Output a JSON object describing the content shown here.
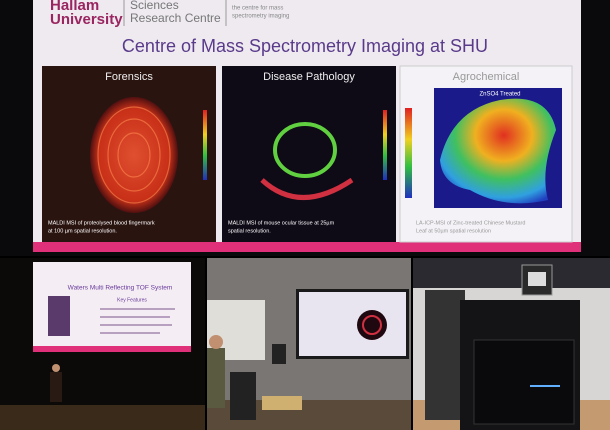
{
  "top_photo": {
    "logo": [
      "Hallam",
      "University"
    ],
    "centre": [
      "Sciences",
      "Research Centre"
    ],
    "tagline": [
      "the centre for mass",
      "spectrometry imaging"
    ],
    "title": "Centre of Mass Spectrometry Imaging at SHU",
    "panels": [
      {
        "title": "Forensics",
        "caption": [
          "MALDI MSI of proteolysed blood fingermark",
          "at 100 µm spatial resolution."
        ]
      },
      {
        "title": "Disease Pathology",
        "caption": [
          "MALDI MSI of mouse ocular tissue at 25µm",
          "spatial resolution."
        ]
      },
      {
        "title": "Agrochemical",
        "caption": [
          "LA-ICP-MSI of Zinc-treated Chinese Mustard",
          "Leaf at 50µm spatial resolution"
        ]
      }
    ],
    "agro_label": "ZnSO4 Treated"
  },
  "bottom_left_photo": {
    "slide_title": "Waters Multi Reflecting TOF System",
    "slide_subtitle": "Key Features"
  }
}
